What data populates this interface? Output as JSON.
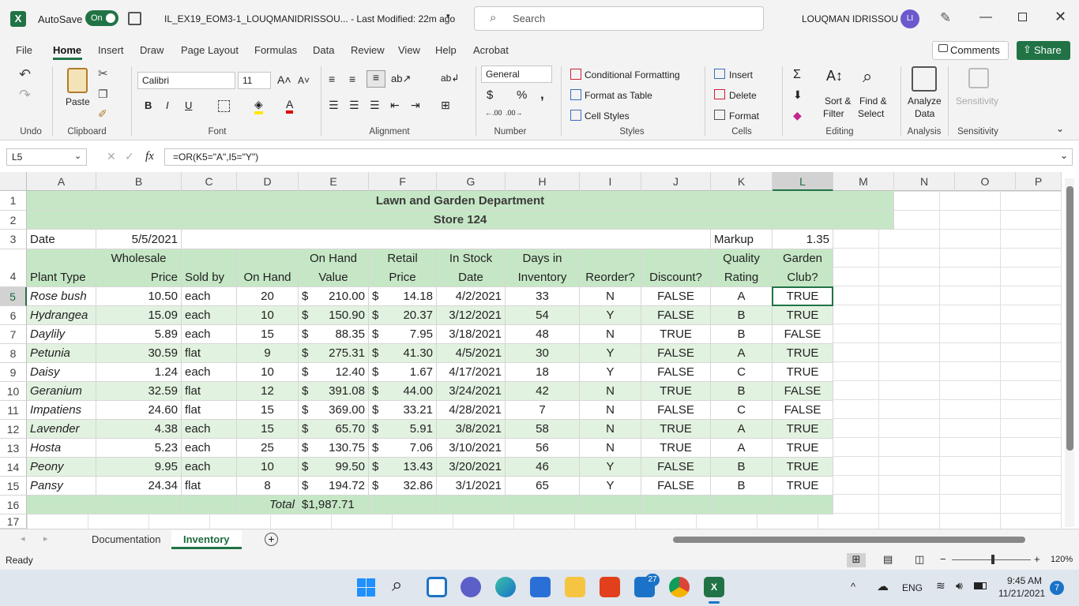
{
  "title_bar": {
    "autosave_label": "AutoSave",
    "autosave_state": "On",
    "filename": "IL_EX19_EOM3-1_LOUQMANIDRISSOU...  -  Last Modified: 22m ago",
    "search_placeholder": "Search",
    "user_name": "LOUQMAN IDRISSOU",
    "user_initials": "LI"
  },
  "menu": {
    "items": [
      "File",
      "Home",
      "Insert",
      "Draw",
      "Page Layout",
      "Formulas",
      "Data",
      "Review",
      "View",
      "Help",
      "Acrobat"
    ],
    "active": "Home",
    "comments": "Comments",
    "share": "Share"
  },
  "ribbon": {
    "groups": [
      "Undo",
      "Clipboard",
      "Font",
      "Alignment",
      "Number",
      "Styles",
      "Cells",
      "Editing",
      "Analysis",
      "Sensitivity"
    ],
    "paste": "Paste",
    "font_name": "Calibri",
    "font_size": "11",
    "number_format": "General",
    "conditional_formatting": "Conditional Formatting",
    "format_as_table": "Format as Table",
    "cell_styles": "Cell Styles",
    "insert": "Insert",
    "delete": "Delete",
    "format": "Format",
    "sort_filter_1": "Sort &",
    "sort_filter_2": "Filter",
    "find_select_1": "Find &",
    "find_select_2": "Select",
    "analyze_1": "Analyze",
    "analyze_2": "Data",
    "sensitivity": "Sensitivity"
  },
  "formula_bar": {
    "name_box": "L5",
    "fx": "fx",
    "formula": "=OR(K5=\"A\",I5=\"Y\")"
  },
  "columns": [
    "A",
    "B",
    "C",
    "D",
    "E",
    "F",
    "G",
    "H",
    "I",
    "J",
    "K",
    "L",
    "M",
    "N",
    "O",
    "P"
  ],
  "rows": [
    "1",
    "2",
    "3",
    "4",
    "5",
    "6",
    "7",
    "8",
    "9",
    "10",
    "11",
    "12",
    "13",
    "14",
    "15",
    "16",
    "17"
  ],
  "sheet": {
    "title1": "Lawn and Garden Department",
    "title2": "Store 124",
    "date_label": "Date",
    "date_value": "5/5/2021",
    "markup_label": "Markup",
    "markup_value": "1.35",
    "headers_top": {
      "B": "Wholesale",
      "E": "On Hand",
      "F": "Retail",
      "G": "In Stock",
      "H": "Days in",
      "K": "Quality",
      "L": "Garden"
    },
    "headers": {
      "A": "Plant Type",
      "B": "Price",
      "C": "Sold by",
      "D": "On Hand",
      "E": "Value",
      "F": "Price",
      "G": "Date",
      "H": "Inventory",
      "I": "Reorder?",
      "J": "Discount?",
      "K": "Rating",
      "L": "Club?"
    },
    "data": [
      [
        "Rose bush",
        "10.50",
        "each",
        "20",
        "$",
        "210.00",
        "$",
        "14.18",
        "4/2/2021",
        "33",
        "N",
        "FALSE",
        "A",
        "TRUE"
      ],
      [
        "Hydrangea",
        "15.09",
        "each",
        "10",
        "$",
        "150.90",
        "$",
        "20.37",
        "3/12/2021",
        "54",
        "Y",
        "FALSE",
        "B",
        "TRUE"
      ],
      [
        "Daylily",
        "5.89",
        "each",
        "15",
        "$",
        "88.35",
        "$",
        "7.95",
        "3/18/2021",
        "48",
        "N",
        "TRUE",
        "B",
        "FALSE"
      ],
      [
        "Petunia",
        "30.59",
        "flat",
        "9",
        "$",
        "275.31",
        "$",
        "41.30",
        "4/5/2021",
        "30",
        "Y",
        "FALSE",
        "A",
        "TRUE"
      ],
      [
        "Daisy",
        "1.24",
        "each",
        "10",
        "$",
        "12.40",
        "$",
        "1.67",
        "4/17/2021",
        "18",
        "Y",
        "FALSE",
        "C",
        "TRUE"
      ],
      [
        "Geranium",
        "32.59",
        "flat",
        "12",
        "$",
        "391.08",
        "$",
        "44.00",
        "3/24/2021",
        "42",
        "N",
        "TRUE",
        "B",
        "FALSE"
      ],
      [
        "Impatiens",
        "24.60",
        "flat",
        "15",
        "$",
        "369.00",
        "$",
        "33.21",
        "4/28/2021",
        "7",
        "N",
        "FALSE",
        "C",
        "FALSE"
      ],
      [
        "Lavender",
        "4.38",
        "each",
        "15",
        "$",
        "65.70",
        "$",
        "5.91",
        "3/8/2021",
        "58",
        "N",
        "TRUE",
        "A",
        "TRUE"
      ],
      [
        "Hosta",
        "5.23",
        "each",
        "25",
        "$",
        "130.75",
        "$",
        "7.06",
        "3/10/2021",
        "56",
        "N",
        "TRUE",
        "A",
        "TRUE"
      ],
      [
        "Peony",
        "9.95",
        "each",
        "10",
        "$",
        "99.50",
        "$",
        "13.43",
        "3/20/2021",
        "46",
        "Y",
        "FALSE",
        "B",
        "TRUE"
      ],
      [
        "Pansy",
        "24.34",
        "flat",
        "8",
        "$",
        "194.72",
        "$",
        "32.86",
        "3/1/2021",
        "65",
        "Y",
        "FALSE",
        "B",
        "TRUE"
      ]
    ],
    "total_label": "Total",
    "total_value": "$1,987.71"
  },
  "tabs": {
    "items": [
      "Documentation",
      "Inventory"
    ],
    "active": "Inventory"
  },
  "status": {
    "ready": "Ready",
    "zoom": "120%"
  },
  "taskbar": {
    "lang": "ENG",
    "time": "9:45 AM",
    "date": "11/21/2021",
    "mail_badge": "27",
    "notif": "7"
  },
  "colors": {
    "accent": "#217346",
    "header_green": "#c6e7c6",
    "row_green": "#e2f2e0"
  }
}
